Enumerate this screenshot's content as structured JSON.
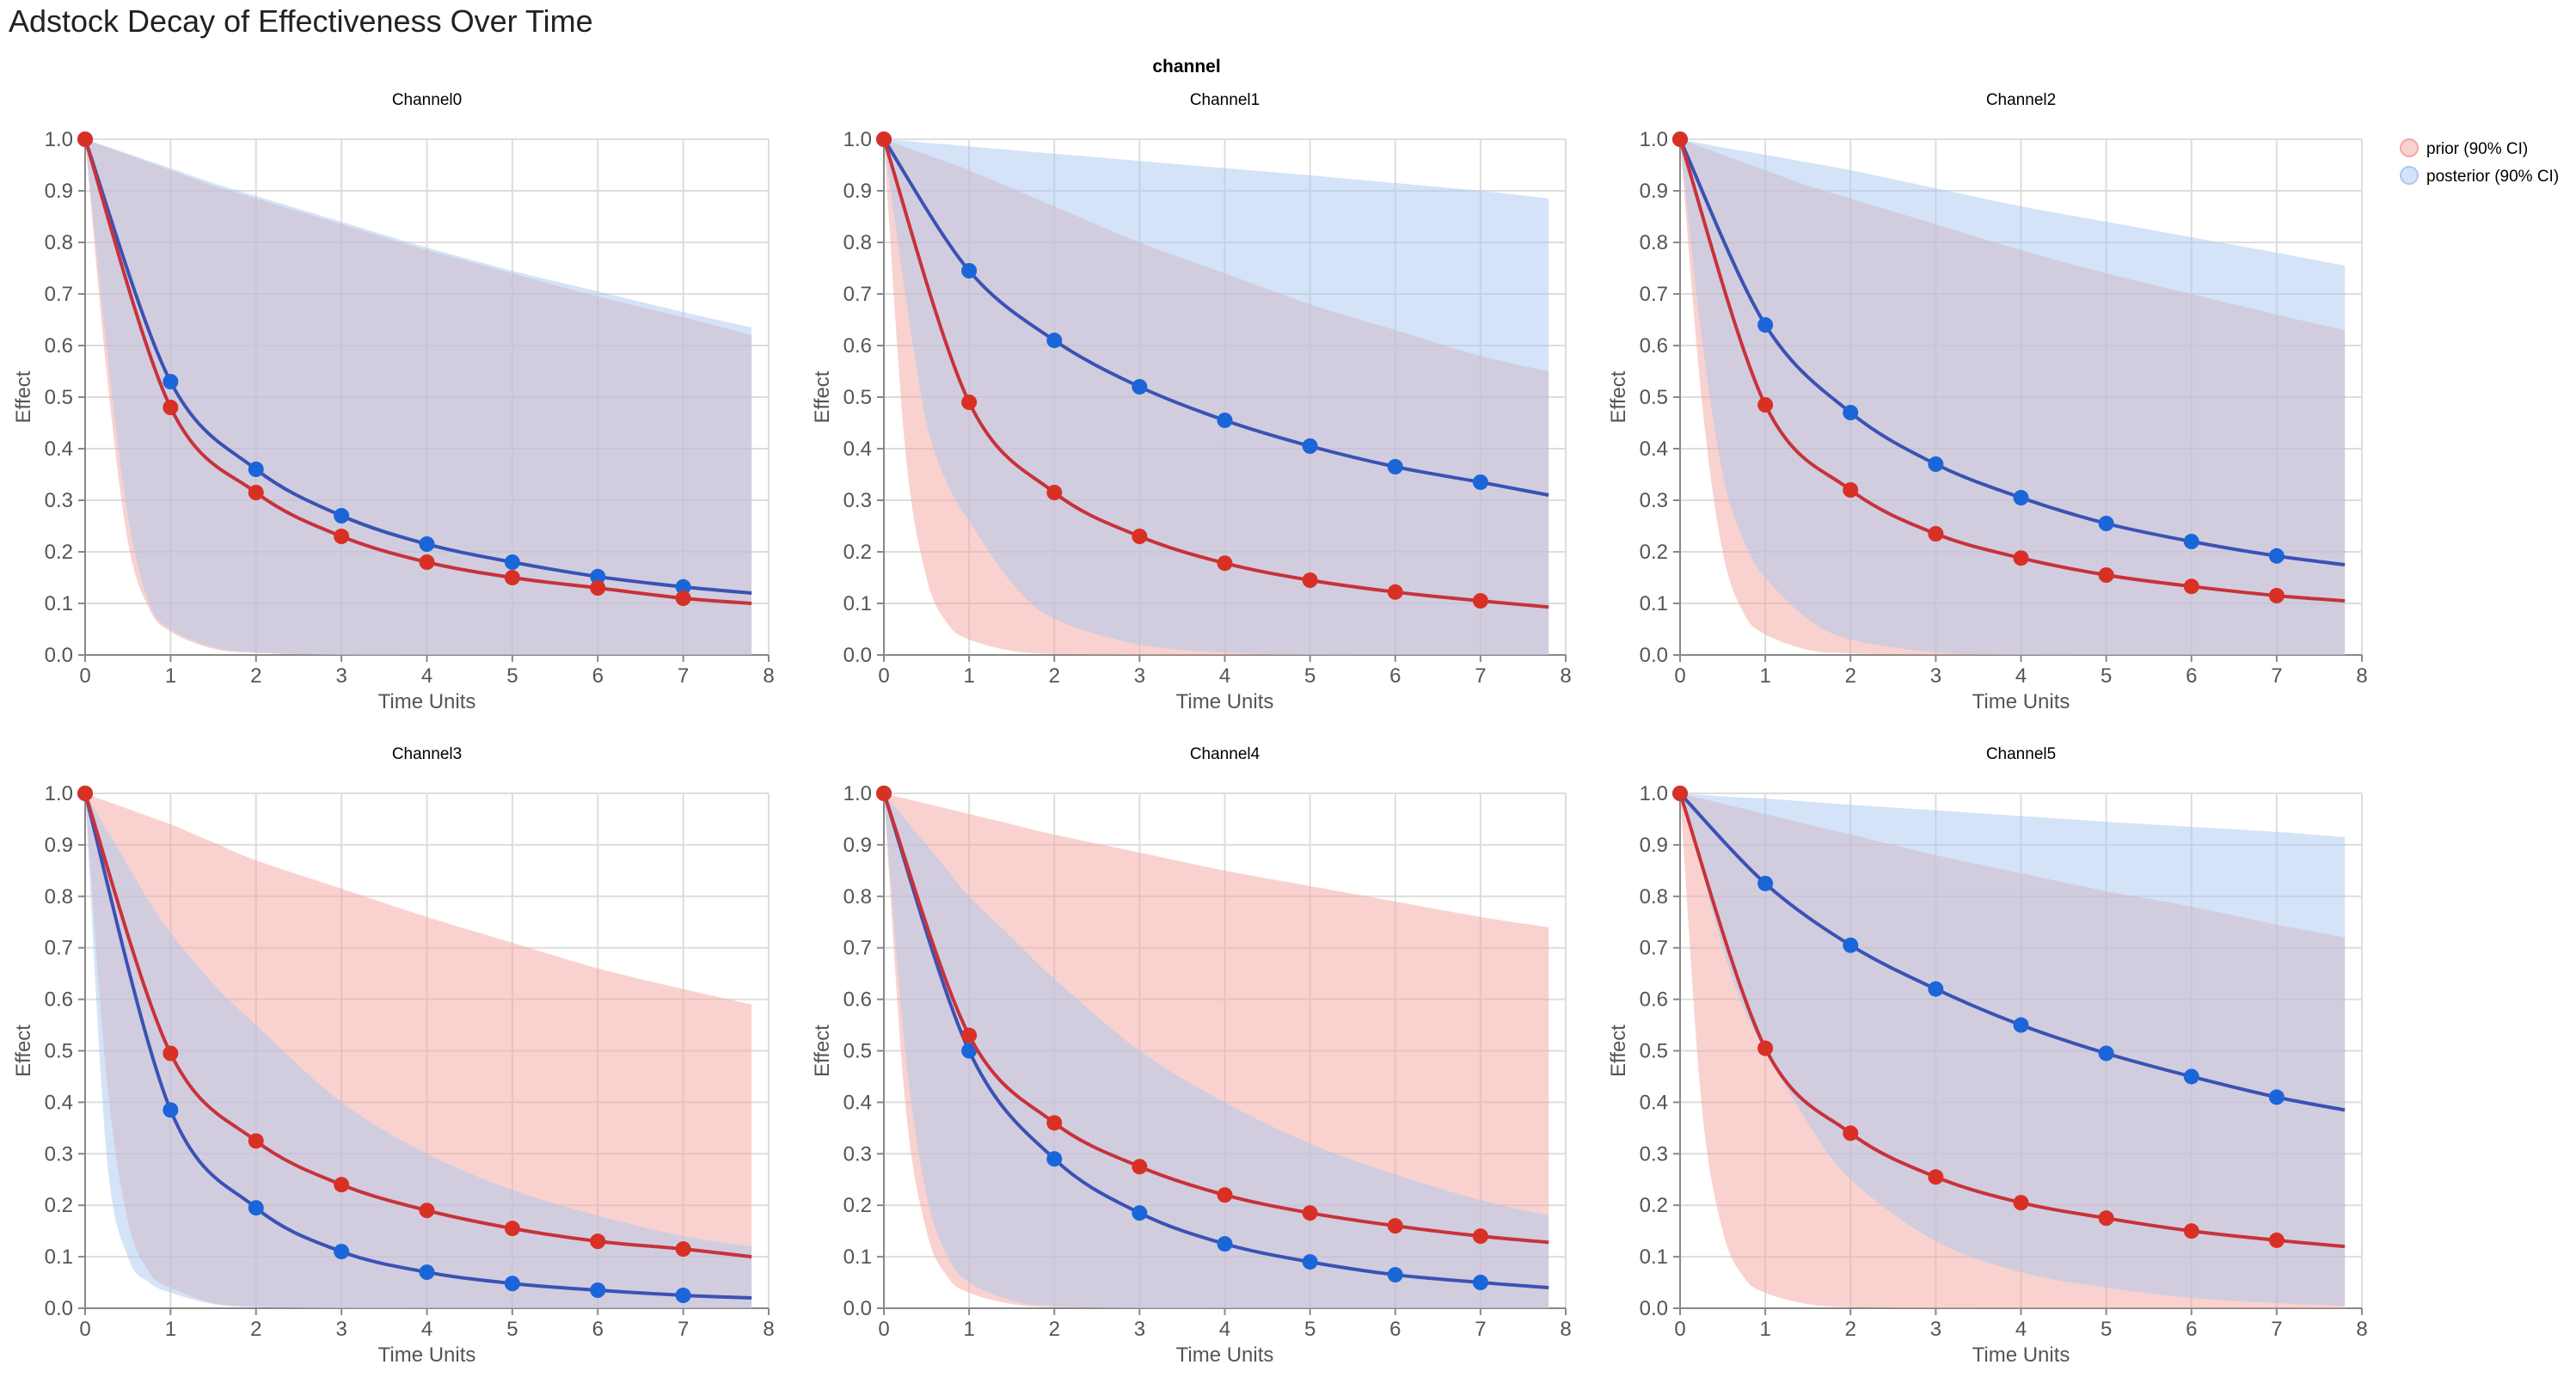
{
  "title": "Adstock Decay of Effectiveness Over Time",
  "facet_header": "channel",
  "legend": [
    {
      "label": "prior (90% CI)",
      "color": "#f4a6a0"
    },
    {
      "label": "posterior (90% CI)",
      "color": "#a9c8f0"
    }
  ],
  "colors": {
    "prior_line": "#c8323a",
    "prior_point": "#d93025",
    "posterior_line": "#3b52b4",
    "posterior_point": "#1a66d9",
    "prior_band": "#f4a6a0",
    "posterior_band": "#a9c8f0"
  },
  "chart_data": {
    "type": "line",
    "xlabel": "Time Units",
    "ylabel": "Effect",
    "xlim": [
      0,
      8
    ],
    "ylim": [
      0,
      1
    ],
    "x_ticks": [
      "0",
      "1",
      "2",
      "3",
      "4",
      "5",
      "6",
      "7",
      "8"
    ],
    "y_ticks": [
      "0.0",
      "0.1",
      "0.2",
      "0.3",
      "0.4",
      "0.5",
      "0.6",
      "0.7",
      "0.8",
      "0.9",
      "1.0"
    ],
    "grid": true,
    "legend_position": "top-right",
    "mean_x": [
      0,
      1,
      2,
      3,
      4,
      5,
      6,
      7,
      7.8
    ],
    "band_x": [
      0,
      0.25,
      0.5,
      0.75,
      1,
      1.5,
      2,
      3,
      4,
      5,
      6,
      7,
      7.8
    ],
    "panels": [
      {
        "title": "Channel0",
        "prior_mean": [
          1,
          0.48,
          0.315,
          0.23,
          0.18,
          0.15,
          0.13,
          0.11,
          0.1
        ],
        "posterior_mean": [
          1,
          0.53,
          0.36,
          0.27,
          0.215,
          0.18,
          0.152,
          0.132,
          0.12
        ],
        "prior_upper": [
          1,
          0.985,
          0.97,
          0.955,
          0.94,
          0.91,
          0.885,
          0.835,
          0.785,
          0.74,
          0.695,
          0.655,
          0.62
        ],
        "prior_lower": [
          1,
          0.55,
          0.22,
          0.09,
          0.045,
          0.012,
          0.004,
          0,
          0,
          0,
          0,
          0,
          0
        ],
        "posterior_upper": [
          1,
          0.986,
          0.972,
          0.958,
          0.944,
          0.915,
          0.89,
          0.84,
          0.79,
          0.745,
          0.705,
          0.665,
          0.635
        ],
        "posterior_lower": [
          1,
          0.6,
          0.27,
          0.1,
          0.05,
          0.015,
          0.005,
          0,
          0,
          0,
          0,
          0,
          0
        ]
      },
      {
        "title": "Channel1",
        "prior_mean": [
          1,
          0.49,
          0.315,
          0.23,
          0.178,
          0.145,
          0.122,
          0.105,
          0.093
        ],
        "posterior_mean": [
          1,
          0.745,
          0.61,
          0.52,
          0.455,
          0.405,
          0.365,
          0.335,
          0.31
        ],
        "prior_upper": [
          1,
          0.985,
          0.97,
          0.955,
          0.94,
          0.905,
          0.87,
          0.8,
          0.74,
          0.68,
          0.63,
          0.58,
          0.55
        ],
        "prior_lower": [
          1,
          0.4,
          0.15,
          0.06,
          0.03,
          0.008,
          0.002,
          0,
          0,
          0,
          0,
          0,
          0
        ],
        "posterior_upper": [
          1,
          0.997,
          0.993,
          0.99,
          0.986,
          0.979,
          0.972,
          0.958,
          0.944,
          0.93,
          0.915,
          0.9,
          0.885
        ],
        "posterior_lower": [
          1,
          0.7,
          0.45,
          0.33,
          0.26,
          0.14,
          0.07,
          0.02,
          0.005,
          0,
          0,
          0,
          0
        ]
      },
      {
        "title": "Channel2",
        "prior_mean": [
          1,
          0.485,
          0.32,
          0.235,
          0.188,
          0.155,
          0.133,
          0.115,
          0.105
        ],
        "posterior_mean": [
          1,
          0.64,
          0.47,
          0.37,
          0.305,
          0.255,
          0.22,
          0.192,
          0.175
        ],
        "prior_upper": [
          1,
          0.985,
          0.97,
          0.955,
          0.94,
          0.91,
          0.885,
          0.835,
          0.785,
          0.74,
          0.7,
          0.66,
          0.63
        ],
        "prior_lower": [
          1,
          0.5,
          0.2,
          0.08,
          0.04,
          0.01,
          0.003,
          0,
          0,
          0,
          0,
          0,
          0
        ],
        "posterior_upper": [
          1,
          0.992,
          0.984,
          0.977,
          0.97,
          0.955,
          0.94,
          0.905,
          0.87,
          0.84,
          0.81,
          0.78,
          0.755
        ],
        "posterior_lower": [
          1,
          0.62,
          0.35,
          0.22,
          0.15,
          0.07,
          0.03,
          0.005,
          0,
          0,
          0,
          0,
          0
        ]
      },
      {
        "title": "Channel3",
        "prior_mean": [
          1,
          0.495,
          0.325,
          0.24,
          0.19,
          0.155,
          0.13,
          0.115,
          0.1
        ],
        "posterior_mean": [
          1,
          0.385,
          0.195,
          0.11,
          0.07,
          0.048,
          0.035,
          0.025,
          0.02
        ],
        "prior_upper": [
          1,
          0.985,
          0.97,
          0.955,
          0.94,
          0.905,
          0.87,
          0.815,
          0.76,
          0.71,
          0.66,
          0.62,
          0.59
        ],
        "prior_lower": [
          1,
          0.45,
          0.17,
          0.07,
          0.04,
          0.01,
          0.003,
          0,
          0,
          0,
          0,
          0,
          0
        ],
        "posterior_upper": [
          1,
          0.93,
          0.86,
          0.79,
          0.73,
          0.63,
          0.55,
          0.4,
          0.3,
          0.23,
          0.18,
          0.14,
          0.12
        ],
        "posterior_lower": [
          1,
          0.3,
          0.1,
          0.05,
          0.03,
          0.008,
          0.002,
          0,
          0,
          0,
          0,
          0,
          0
        ]
      },
      {
        "title": "Channel4",
        "prior_mean": [
          1,
          0.53,
          0.36,
          0.275,
          0.22,
          0.185,
          0.16,
          0.14,
          0.128
        ],
        "posterior_mean": [
          1,
          0.5,
          0.29,
          0.185,
          0.125,
          0.09,
          0.065,
          0.05,
          0.04
        ],
        "prior_upper": [
          1,
          0.99,
          0.98,
          0.97,
          0.96,
          0.94,
          0.92,
          0.885,
          0.85,
          0.82,
          0.79,
          0.76,
          0.74
        ],
        "prior_lower": [
          1,
          0.4,
          0.15,
          0.06,
          0.03,
          0.008,
          0.002,
          0,
          0,
          0,
          0,
          0,
          0
        ],
        "posterior_upper": [
          1,
          0.95,
          0.9,
          0.85,
          0.8,
          0.72,
          0.64,
          0.5,
          0.4,
          0.32,
          0.26,
          0.21,
          0.18
        ],
        "posterior_lower": [
          1,
          0.5,
          0.22,
          0.1,
          0.05,
          0.015,
          0.004,
          0,
          0,
          0,
          0,
          0,
          0
        ]
      },
      {
        "title": "Channel5",
        "prior_mean": [
          1,
          0.505,
          0.34,
          0.255,
          0.205,
          0.175,
          0.15,
          0.132,
          0.12
        ],
        "posterior_mean": [
          1,
          0.825,
          0.705,
          0.62,
          0.55,
          0.495,
          0.45,
          0.41,
          0.385
        ],
        "prior_upper": [
          1,
          0.99,
          0.98,
          0.97,
          0.96,
          0.94,
          0.92,
          0.88,
          0.845,
          0.81,
          0.78,
          0.745,
          0.72
        ],
        "prior_lower": [
          1,
          0.4,
          0.15,
          0.06,
          0.03,
          0.008,
          0.002,
          0,
          0,
          0,
          0,
          0,
          0
        ],
        "posterior_upper": [
          1,
          0.997,
          0.994,
          0.992,
          0.99,
          0.984,
          0.978,
          0.967,
          0.956,
          0.945,
          0.935,
          0.925,
          0.915
        ],
        "posterior_lower": [
          1,
          0.85,
          0.7,
          0.58,
          0.5,
          0.36,
          0.25,
          0.13,
          0.07,
          0.04,
          0.02,
          0.01,
          0.005
        ]
      }
    ]
  }
}
